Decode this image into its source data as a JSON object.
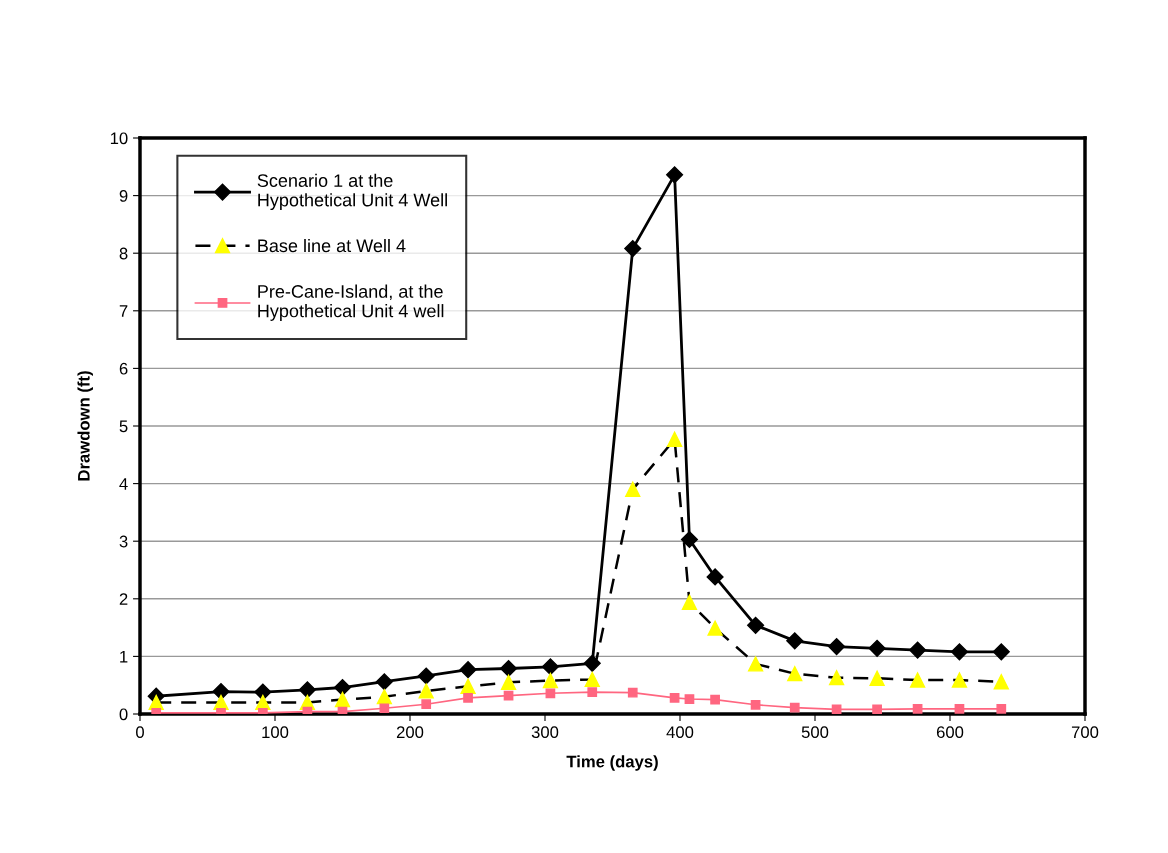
{
  "chart_data": {
    "type": "line",
    "xlabel": "Time (days)",
    "ylabel": "Drawdown (ft)",
    "x": [
      12,
      60,
      91,
      124,
      150,
      181,
      212,
      243,
      273,
      304,
      335,
      365,
      396,
      407,
      426,
      456,
      485,
      516,
      546,
      576,
      607,
      638
    ],
    "series": [
      {
        "name": "Scenario 1 at the\nHypothetical Unit 4 Well",
        "color": "#000000",
        "marker": "diamond",
        "line_style": "solid",
        "values": [
          0.31,
          0.39,
          0.38,
          0.42,
          0.46,
          0.56,
          0.66,
          0.77,
          0.79,
          0.82,
          0.88,
          8.08,
          9.36,
          3.03,
          2.38,
          1.54,
          1.27,
          1.17,
          1.14,
          1.11,
          1.08,
          1.08
        ]
      },
      {
        "name": "Base line at Well 4",
        "color": "#ffff00",
        "marker": "triangle",
        "line_style": "dashed",
        "values": [
          0.2,
          0.2,
          0.2,
          0.2,
          0.25,
          0.3,
          0.4,
          0.48,
          0.55,
          0.58,
          0.6,
          3.9,
          4.77,
          1.94,
          1.49,
          0.87,
          0.7,
          0.63,
          0.62,
          0.59,
          0.59,
          0.56
        ]
      },
      {
        "name": "Pre-Cane-Island, at the\nHypothetical Unit 4 well",
        "color": "#ff6680",
        "marker": "square",
        "line_style": "solid",
        "values": [
          0.02,
          0.02,
          0.02,
          0.04,
          0.04,
          0.1,
          0.17,
          0.28,
          0.32,
          0.36,
          0.38,
          0.37,
          0.28,
          0.26,
          0.25,
          0.16,
          0.11,
          0.08,
          0.08,
          0.09,
          0.09,
          0.09
        ]
      }
    ],
    "xlim": [
      0,
      700
    ],
    "xticks": [
      0,
      100,
      200,
      300,
      400,
      500,
      600,
      700
    ],
    "ylim": [
      0,
      10
    ],
    "yticks": [
      0,
      1,
      2,
      3,
      4,
      5,
      6,
      7,
      8,
      9,
      10
    ],
    "grid": "y",
    "legend": "top left"
  }
}
